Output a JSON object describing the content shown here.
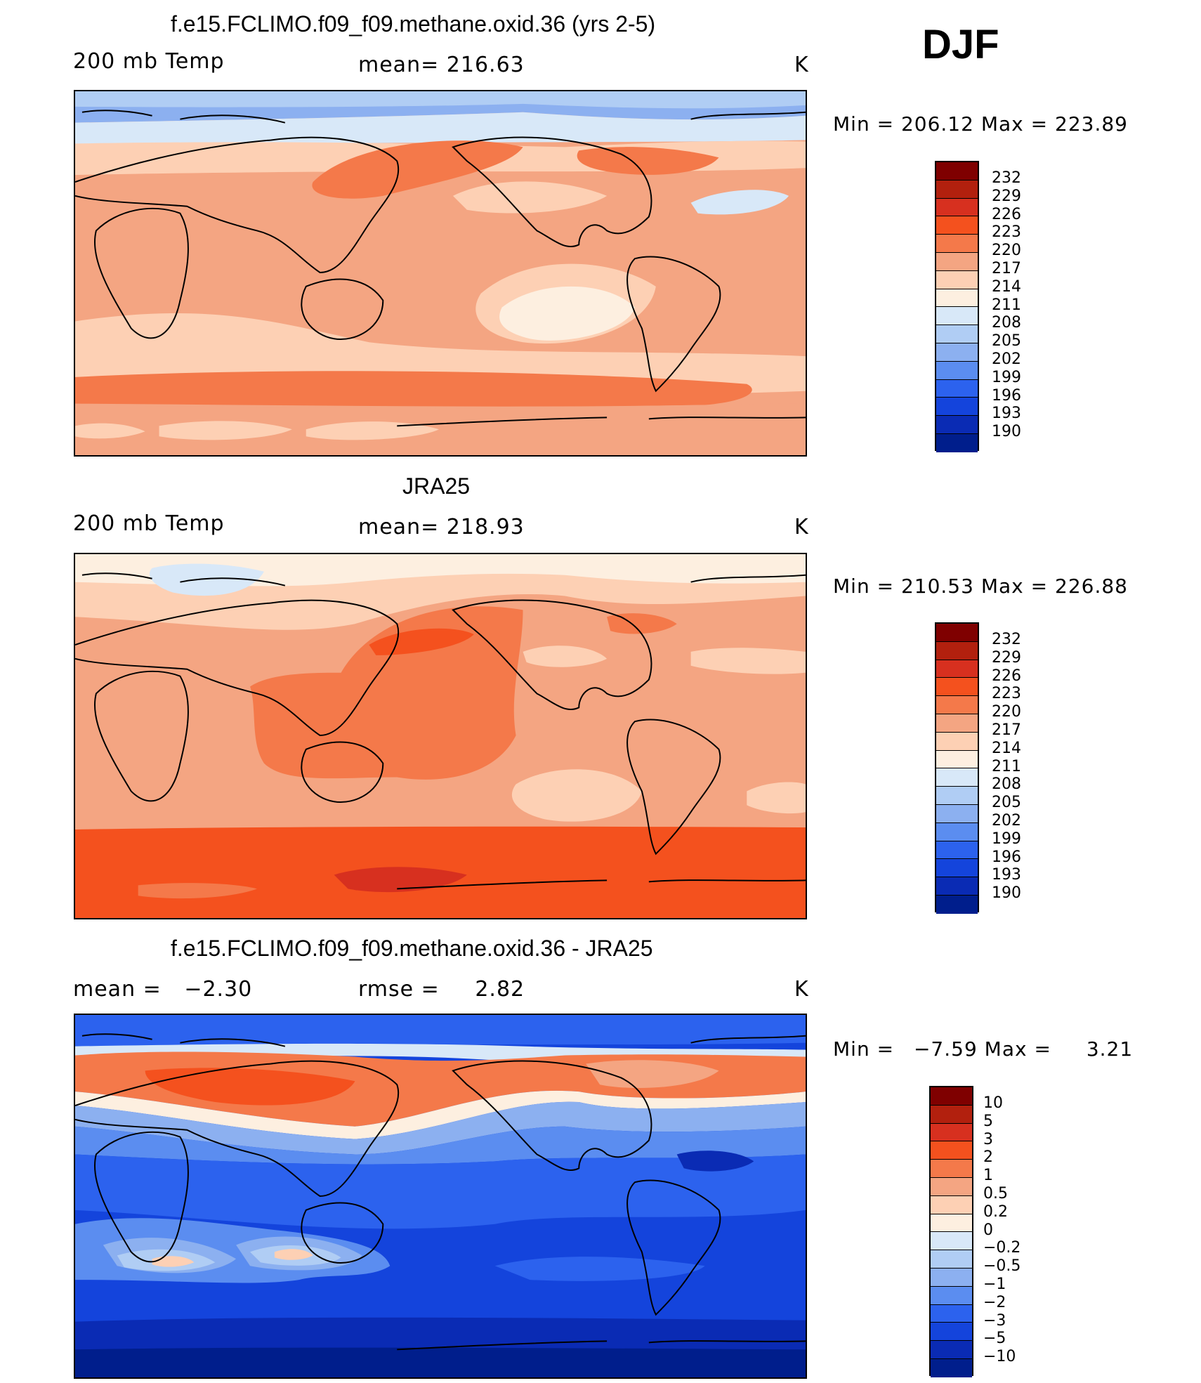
{
  "chart_data": [
    {
      "type": "heatmap",
      "title": "f.e15.FCLIMO.f09_f09.methane.oxid.36 (yrs 2-5)",
      "variable": "200 mb Temp",
      "stat_label": "mean=",
      "stat_value": "216.63",
      "units": "K",
      "min_label": "Min",
      "min_value": "206.12",
      "max_label": "Max",
      "max_value": "223.89",
      "colorbar_levels": [
        "232",
        "229",
        "226",
        "223",
        "220",
        "217",
        "214",
        "211",
        "208",
        "205",
        "202",
        "199",
        "196",
        "193",
        "190"
      ]
    },
    {
      "type": "heatmap",
      "title": "JRA25",
      "variable": "200 mb Temp",
      "stat_label": "mean=",
      "stat_value": "218.93",
      "units": "K",
      "min_label": "Min",
      "min_value": "210.53",
      "max_label": "Max",
      "max_value": "226.88",
      "colorbar_levels": [
        "232",
        "229",
        "226",
        "223",
        "220",
        "217",
        "214",
        "211",
        "208",
        "205",
        "202",
        "199",
        "196",
        "193",
        "190"
      ]
    },
    {
      "type": "heatmap",
      "title": "f.e15.FCLIMO.f09_f09.methane.oxid.36 - JRA25",
      "stat_label": "mean =",
      "stat_value": "−2.30",
      "stat2_label": "rmse =",
      "stat2_value": "2.82",
      "units": "K",
      "min_label": "Min",
      "min_value": "−7.59",
      "max_label": "Max",
      "max_value": "3.21",
      "colorbar_levels": [
        "10",
        "5",
        "3",
        "2",
        "1",
        "0.5",
        "0.2",
        "0",
        "−0.2",
        "−0.5",
        "−1",
        "−2",
        "−3",
        "−5",
        "−10"
      ]
    }
  ],
  "season": "DJF",
  "colors": {
    "abs_scale": [
      "#7f0000",
      "#b2200e",
      "#d7301f",
      "#f4511e",
      "#f4794a",
      "#f4a582",
      "#fdd0b4",
      "#fdefe0",
      "#d8e8f8",
      "#b0cdf4",
      "#8cb0f0",
      "#5b8df0",
      "#2c62ee",
      "#1444dc",
      "#0a2bb4",
      "#001e8c"
    ],
    "diff_scale": [
      "#7f0000",
      "#b2200e",
      "#d7301f",
      "#f4511e",
      "#f4794a",
      "#f4a582",
      "#fdd0b4",
      "#fdefe0",
      "#d8e8f8",
      "#b0cdf4",
      "#8cb0f0",
      "#5b8df0",
      "#2c62ee",
      "#1444dc",
      "#0a2bb4",
      "#001e8c"
    ]
  }
}
